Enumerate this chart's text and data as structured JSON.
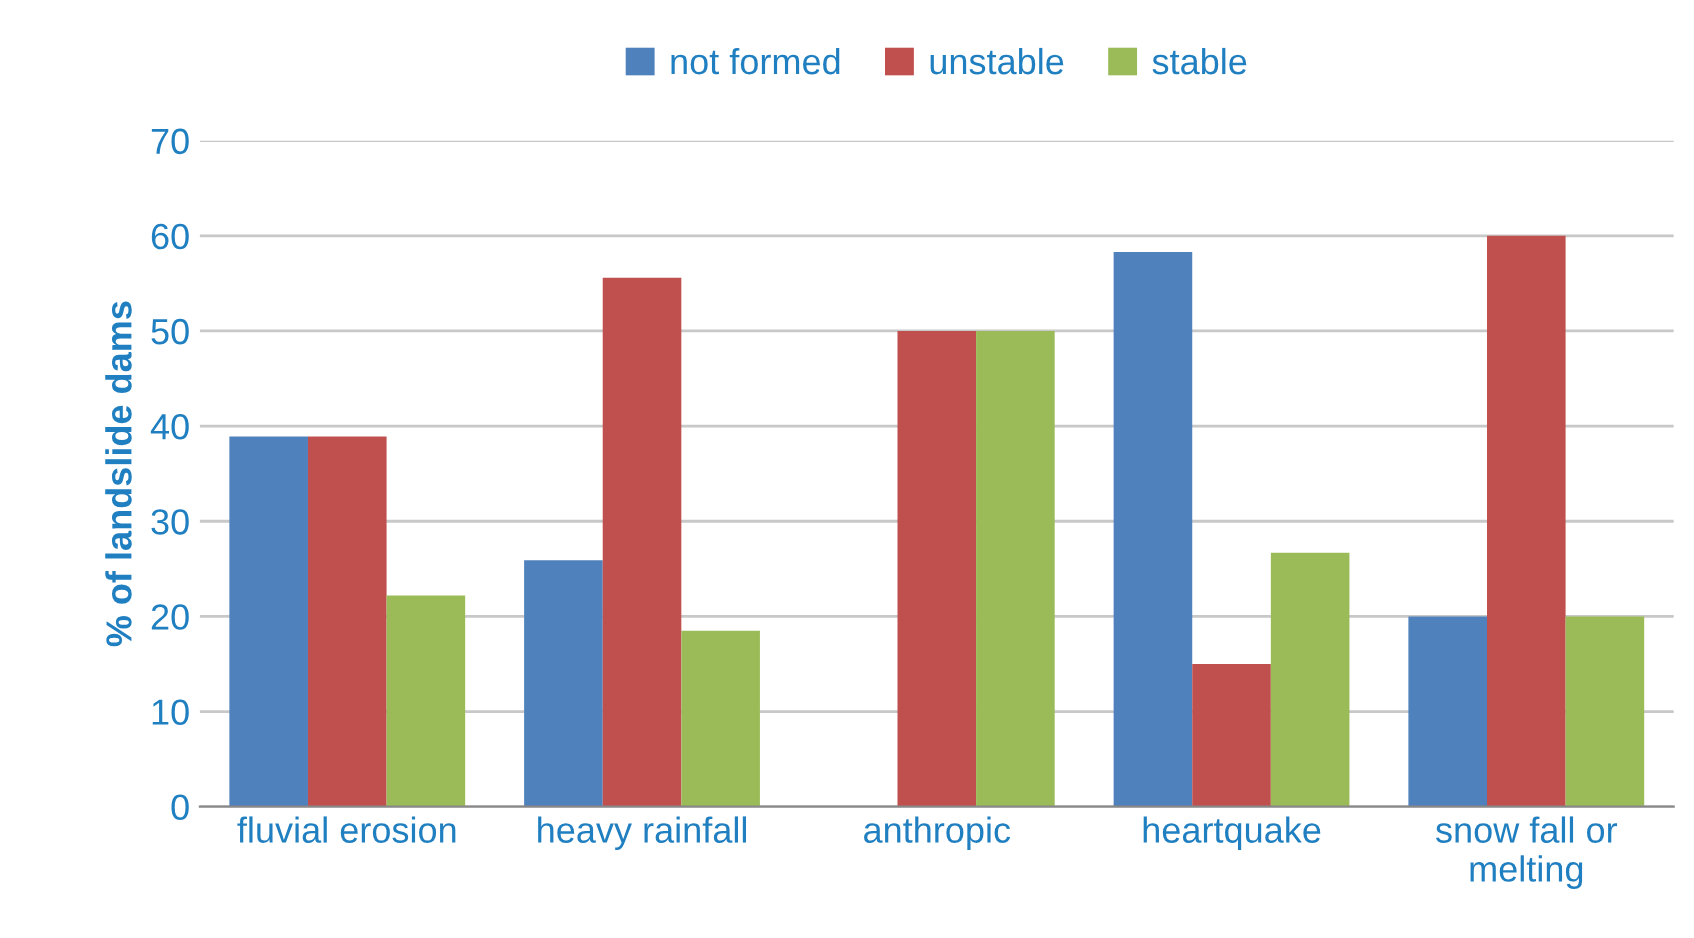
{
  "chart_data": {
    "type": "bar",
    "ylabel": "% of landslide dams",
    "categories": [
      "fluvial erosion",
      "heavy rainfall",
      "anthropic",
      "heartquake",
      "snow fall or\nmelting"
    ],
    "series": [
      {
        "name": "not formed",
        "color": "#4f81bd",
        "values": [
          38.9,
          25.9,
          0,
          58.3,
          20
        ]
      },
      {
        "name": "unstable",
        "color": "#c0504d",
        "values": [
          38.9,
          55.6,
          50,
          15,
          60
        ]
      },
      {
        "name": "stable",
        "color": "#9bbb59",
        "values": [
          22.2,
          18.5,
          50,
          26.7,
          20
        ]
      }
    ],
    "ylim": [
      0,
      70
    ],
    "yticks": [
      0,
      10,
      20,
      30,
      40,
      50,
      60,
      70
    ],
    "grid": "y",
    "legend": "top"
  }
}
